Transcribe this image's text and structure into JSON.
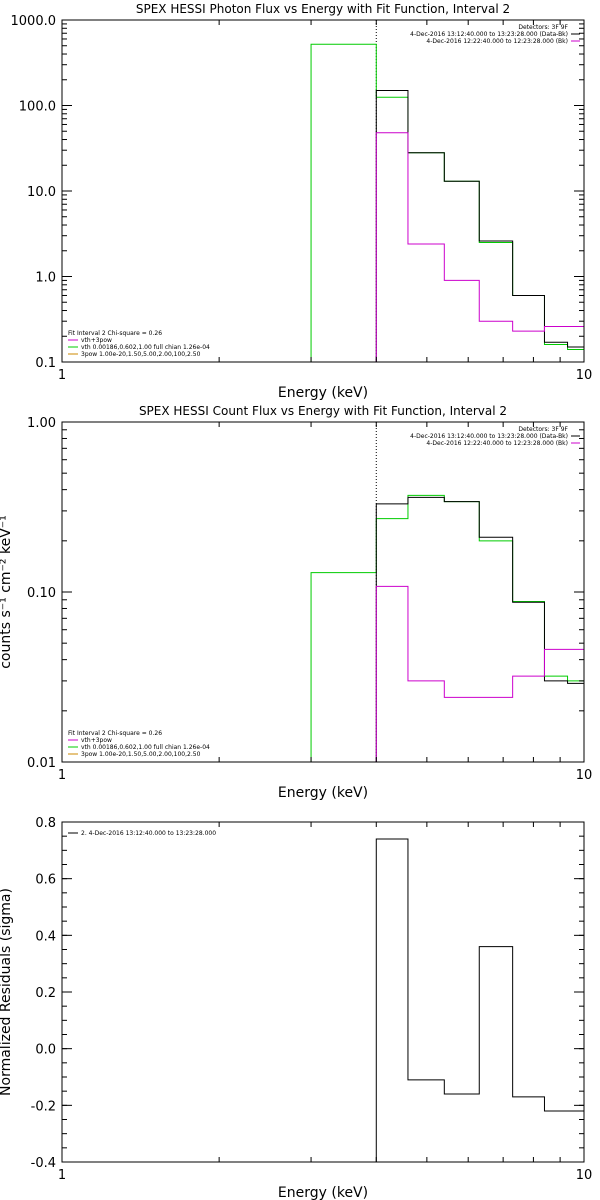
{
  "chart_data": [
    {
      "type": "step",
      "title": "SPEX HESSI Photon Flux vs Energy with Fit Function, Interval 2",
      "xlabel": "Energy (keV)",
      "ylabel": "",
      "xscale": "log",
      "yscale": "log",
      "xlim": [
        1,
        10
      ],
      "ylim": [
        0.1,
        1000
      ],
      "xticks": [
        {
          "v": 1,
          "label": "1"
        },
        {
          "v": 10,
          "label": "10"
        }
      ],
      "yticks": [
        {
          "v": 0.1,
          "label": "0.1"
        },
        {
          "v": 1,
          "label": "1.0"
        },
        {
          "v": 10,
          "label": "10.0"
        },
        {
          "v": 100,
          "label": "100.0"
        },
        {
          "v": 1000,
          "label": "1000.0"
        }
      ],
      "vline": 4.0,
      "legend_top_right": [
        {
          "text": "Detectors: 3F 9F",
          "color": "#000000"
        },
        {
          "text": "4-Dec-2016 13:12:40.000 to 13:23:28.000 (Data-Bk)",
          "color": "#000000"
        },
        {
          "text": "4-Dec-2016 12:22:40.000 to 12:23:28.000 (Bk)",
          "color": "#cc00cc"
        }
      ],
      "legend_bottom_left": [
        {
          "text": "Fit Interval 2   Chi-square = 0.26",
          "color": "#000000"
        },
        {
          "text": "vth+3pow",
          "color": "#cc00cc"
        },
        {
          "text": "vth 0.00186,0.602,1.00  full chian 1.26e-04",
          "color": "#00cc00"
        },
        {
          "text": "3pow 1.00e-20,1.50,5.00,2.00,100,2.50",
          "color": "#cc8800"
        }
      ],
      "series": [
        {
          "color": "#00cc00",
          "edges": [
            3.0,
            4.0,
            4.6,
            5.4,
            6.3,
            7.3,
            8.4,
            9.3,
            10.0
          ],
          "values": [
            520,
            125,
            28,
            13,
            2.5,
            0.6,
            0.16,
            0.14
          ]
        },
        {
          "color": "#000000",
          "edges": [
            4.0,
            4.6,
            5.4,
            6.3,
            7.3,
            8.4,
            9.3,
            10.0
          ],
          "values": [
            150,
            28,
            13,
            2.6,
            0.6,
            0.17,
            0.15
          ]
        },
        {
          "color": "#cc00cc",
          "edges": [
            4.0,
            4.6,
            5.4,
            6.3,
            7.3,
            8.4,
            9.3,
            10.0
          ],
          "values": [
            48,
            2.4,
            0.9,
            0.3,
            0.23,
            0.26,
            0.26
          ]
        }
      ]
    },
    {
      "type": "step",
      "title": "SPEX HESSI Count Flux vs Energy with Fit Function, Interval 2",
      "xlabel": "Energy (keV)",
      "ylabel": "counts s⁻¹ cm⁻² keV⁻¹",
      "xscale": "log",
      "yscale": "log",
      "xlim": [
        1,
        10
      ],
      "ylim": [
        0.01,
        1.0
      ],
      "xticks": [
        {
          "v": 1,
          "label": "1"
        },
        {
          "v": 10,
          "label": "10"
        }
      ],
      "yticks": [
        {
          "v": 0.01,
          "label": "0.01"
        },
        {
          "v": 0.1,
          "label": "0.10"
        },
        {
          "v": 1.0,
          "label": "1.00"
        }
      ],
      "vline": 4.0,
      "legend_top_right": [
        {
          "text": "Detectors: 3F 9F",
          "color": "#000000"
        },
        {
          "text": "4-Dec-2016 13:12:40.000 to 13:23:28.000 (Data-Bk)",
          "color": "#000000"
        },
        {
          "text": "4-Dec-2016 12:22:40.000 to 12:23:28.000 (Bk)",
          "color": "#cc00cc"
        }
      ],
      "legend_bottom_left": [
        {
          "text": "Fit Interval 2   Chi-square = 0.26",
          "color": "#000000"
        },
        {
          "text": "vth+3pow",
          "color": "#cc00cc"
        },
        {
          "text": "vth 0.00186,0.602,1.00  full chian 1.26e-04",
          "color": "#00cc00"
        },
        {
          "text": "3pow 1.00e-20,1.50,5.00,2.00,100,2.50",
          "color": "#cc8800"
        }
      ],
      "series": [
        {
          "color": "#00cc00",
          "edges": [
            3.0,
            4.0,
            4.6,
            5.4,
            6.3,
            7.3,
            8.4,
            9.3,
            10.0
          ],
          "values": [
            0.13,
            0.27,
            0.37,
            0.34,
            0.2,
            0.088,
            0.032,
            0.03
          ]
        },
        {
          "color": "#000000",
          "edges": [
            4.0,
            4.6,
            5.4,
            6.3,
            7.3,
            8.4,
            9.3,
            10.0
          ],
          "values": [
            0.33,
            0.36,
            0.34,
            0.21,
            0.087,
            0.03,
            0.029
          ]
        },
        {
          "color": "#cc00cc",
          "edges": [
            4.0,
            4.6,
            5.4,
            6.3,
            7.3,
            8.4,
            9.3,
            10.0
          ],
          "values": [
            0.108,
            0.03,
            0.024,
            0.024,
            0.032,
            0.046,
            0.046
          ]
        }
      ]
    },
    {
      "type": "step",
      "title": "",
      "xlabel": "Energy (keV)",
      "ylabel": "Normalized Residuals (sigma)",
      "xscale": "log",
      "yscale": "linear",
      "xlim": [
        1,
        10
      ],
      "ylim": [
        -0.4,
        0.8
      ],
      "xticks": [
        {
          "v": 1,
          "label": "1"
        },
        {
          "v": 10,
          "label": "10"
        }
      ],
      "yticks": [
        {
          "v": -0.4,
          "label": "-0.4"
        },
        {
          "v": -0.2,
          "label": "-0.2"
        },
        {
          "v": 0.0,
          "label": "0.0"
        },
        {
          "v": 0.2,
          "label": "0.2"
        },
        {
          "v": 0.4,
          "label": "0.4"
        },
        {
          "v": 0.6,
          "label": "0.6"
        },
        {
          "v": 0.8,
          "label": "0.8"
        }
      ],
      "vline": null,
      "legend_top_left": [
        {
          "text": "2.  4-Dec-2016 13:12:40.000 to 13:23:28.000",
          "color": "#000000"
        }
      ],
      "series": [
        {
          "color": "#000000",
          "edges": [
            4.0,
            4.6,
            5.4,
            6.3,
            7.3,
            8.4,
            9.3,
            10.0
          ],
          "values": [
            0.74,
            -0.11,
            -0.16,
            0.36,
            -0.17,
            -0.22,
            -0.22
          ]
        }
      ]
    }
  ]
}
